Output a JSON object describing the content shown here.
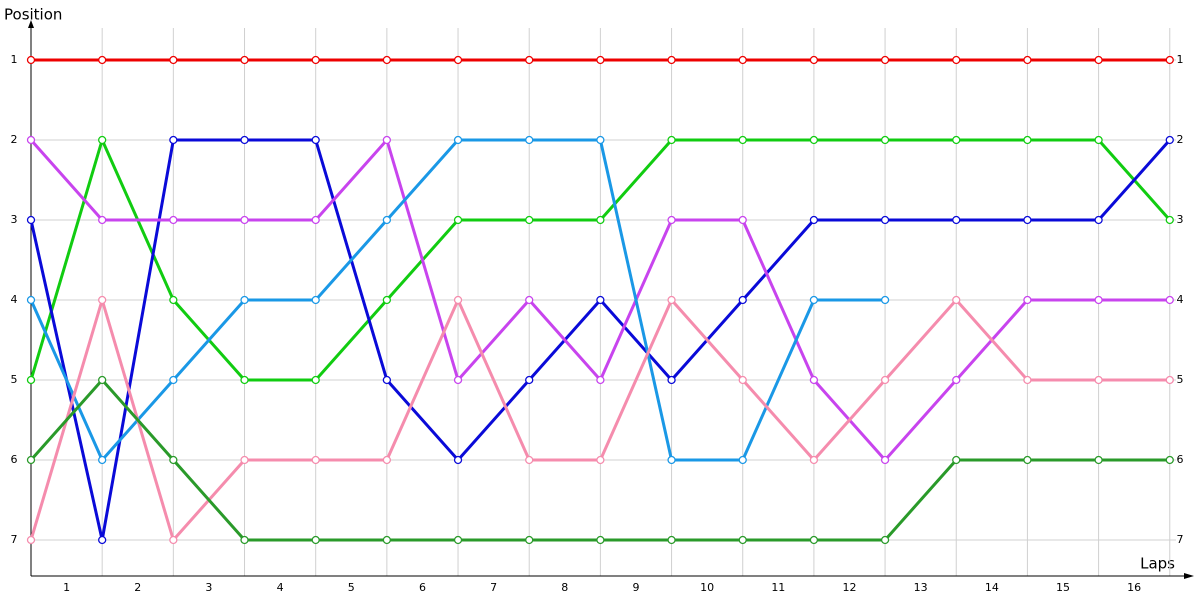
{
  "chart_data": {
    "type": "line",
    "y_label": "Position",
    "x_label": "Laps",
    "x": [
      0,
      1,
      2,
      3,
      4,
      5,
      6,
      7,
      8,
      9,
      10,
      11,
      12,
      13,
      14,
      15,
      16
    ],
    "xlim": [
      0,
      16.2
    ],
    "ylim": [
      7.45,
      0.5
    ],
    "y_inverted": true,
    "grid": true,
    "xticks": [
      {
        "value": 0.5,
        "label": "1"
      },
      {
        "value": 1.5,
        "label": "2"
      },
      {
        "value": 2.5,
        "label": "3"
      },
      {
        "value": 3.5,
        "label": "4"
      },
      {
        "value": 4.5,
        "label": "5"
      },
      {
        "value": 5.5,
        "label": "6"
      },
      {
        "value": 6.5,
        "label": "7"
      },
      {
        "value": 7.5,
        "label": "8"
      },
      {
        "value": 8.5,
        "label": "9"
      },
      {
        "value": 9.5,
        "label": "10"
      },
      {
        "value": 10.5,
        "label": "11"
      },
      {
        "value": 11.5,
        "label": "12"
      },
      {
        "value": 12.5,
        "label": "13"
      },
      {
        "value": 13.5,
        "label": "14"
      },
      {
        "value": 14.5,
        "label": "15"
      },
      {
        "value": 15.5,
        "label": "16"
      }
    ],
    "xgrid": [
      0,
      1,
      2,
      3,
      4,
      5,
      6,
      7,
      8,
      9,
      10,
      11,
      12,
      13,
      14,
      15,
      16
    ],
    "yticks": [
      1,
      2,
      3,
      4,
      5,
      6,
      7
    ],
    "series": [
      {
        "color": "#ee0000",
        "values": [
          1,
          1,
          1,
          1,
          1,
          1,
          1,
          1,
          1,
          1,
          1,
          1,
          1,
          1,
          1,
          1,
          1
        ]
      },
      {
        "color": "#11cc11",
        "values": [
          5,
          2,
          4,
          5,
          5,
          4,
          3,
          3,
          3,
          2,
          2,
          2,
          2,
          2,
          2,
          2,
          3
        ]
      },
      {
        "color": "#0a0ad8",
        "values": [
          3,
          7,
          2,
          2,
          2,
          5,
          6,
          5,
          4,
          5,
          4,
          3,
          3,
          3,
          3,
          3,
          2
        ]
      },
      {
        "color": "#c844ee",
        "values": [
          2,
          3,
          3,
          3,
          3,
          2,
          5,
          4,
          5,
          3,
          3,
          5,
          6,
          5,
          4,
          4,
          4
        ]
      },
      {
        "color": "#1a98e6",
        "values": [
          4,
          6,
          5,
          4,
          4,
          3,
          2,
          2,
          2,
          6,
          6,
          4,
          4,
          null,
          null,
          null,
          null
        ]
      },
      {
        "color": "#f58cad",
        "values": [
          7,
          4,
          7,
          6,
          6,
          6,
          4,
          6,
          6,
          4,
          5,
          6,
          5,
          4,
          5,
          5,
          5
        ]
      },
      {
        "color": "#2a9a2a",
        "values": [
          6,
          5,
          6,
          7,
          7,
          7,
          7,
          7,
          7,
          7,
          7,
          7,
          7,
          6,
          6,
          6,
          6
        ]
      }
    ]
  }
}
